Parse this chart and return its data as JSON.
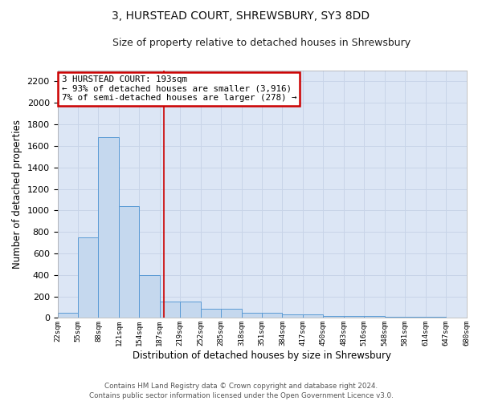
{
  "title": "3, HURSTEAD COURT, SHREWSBURY, SY3 8DD",
  "subtitle": "Size of property relative to detached houses in Shrewsbury",
  "xlabel": "Distribution of detached houses by size in Shrewsbury",
  "ylabel": "Number of detached properties",
  "footer": "Contains HM Land Registry data © Crown copyright and database right 2024.\nContains public sector information licensed under the Open Government Licence v3.0.",
  "bin_labels": [
    "22sqm",
    "55sqm",
    "88sqm",
    "121sqm",
    "154sqm",
    "187sqm",
    "219sqm",
    "252sqm",
    "285sqm",
    "318sqm",
    "351sqm",
    "384sqm",
    "417sqm",
    "450sqm",
    "483sqm",
    "516sqm",
    "548sqm",
    "581sqm",
    "614sqm",
    "647sqm",
    "680sqm"
  ],
  "bar_values": [
    50,
    750,
    1680,
    1040,
    400,
    150,
    150,
    85,
    85,
    50,
    45,
    35,
    30,
    20,
    20,
    15,
    10,
    10,
    10,
    5
  ],
  "bar_color": "#c5d8ee",
  "bar_edge_color": "#5b9bd5",
  "red_line_x": 5.5,
  "ylim": [
    0,
    2300
  ],
  "yticks": [
    0,
    200,
    400,
    600,
    800,
    1000,
    1200,
    1400,
    1600,
    1800,
    2000,
    2200
  ],
  "annotation_text": "3 HURSTEAD COURT: 193sqm\n← 93% of detached houses are smaller (3,916)\n7% of semi-detached houses are larger (278) →",
  "annotation_box_color": "#ffffff",
  "annotation_box_edge": "#cc0000",
  "grid_color": "#c8d4e8",
  "bg_color": "#dce6f5",
  "title_fontsize": 10,
  "subtitle_fontsize": 9
}
